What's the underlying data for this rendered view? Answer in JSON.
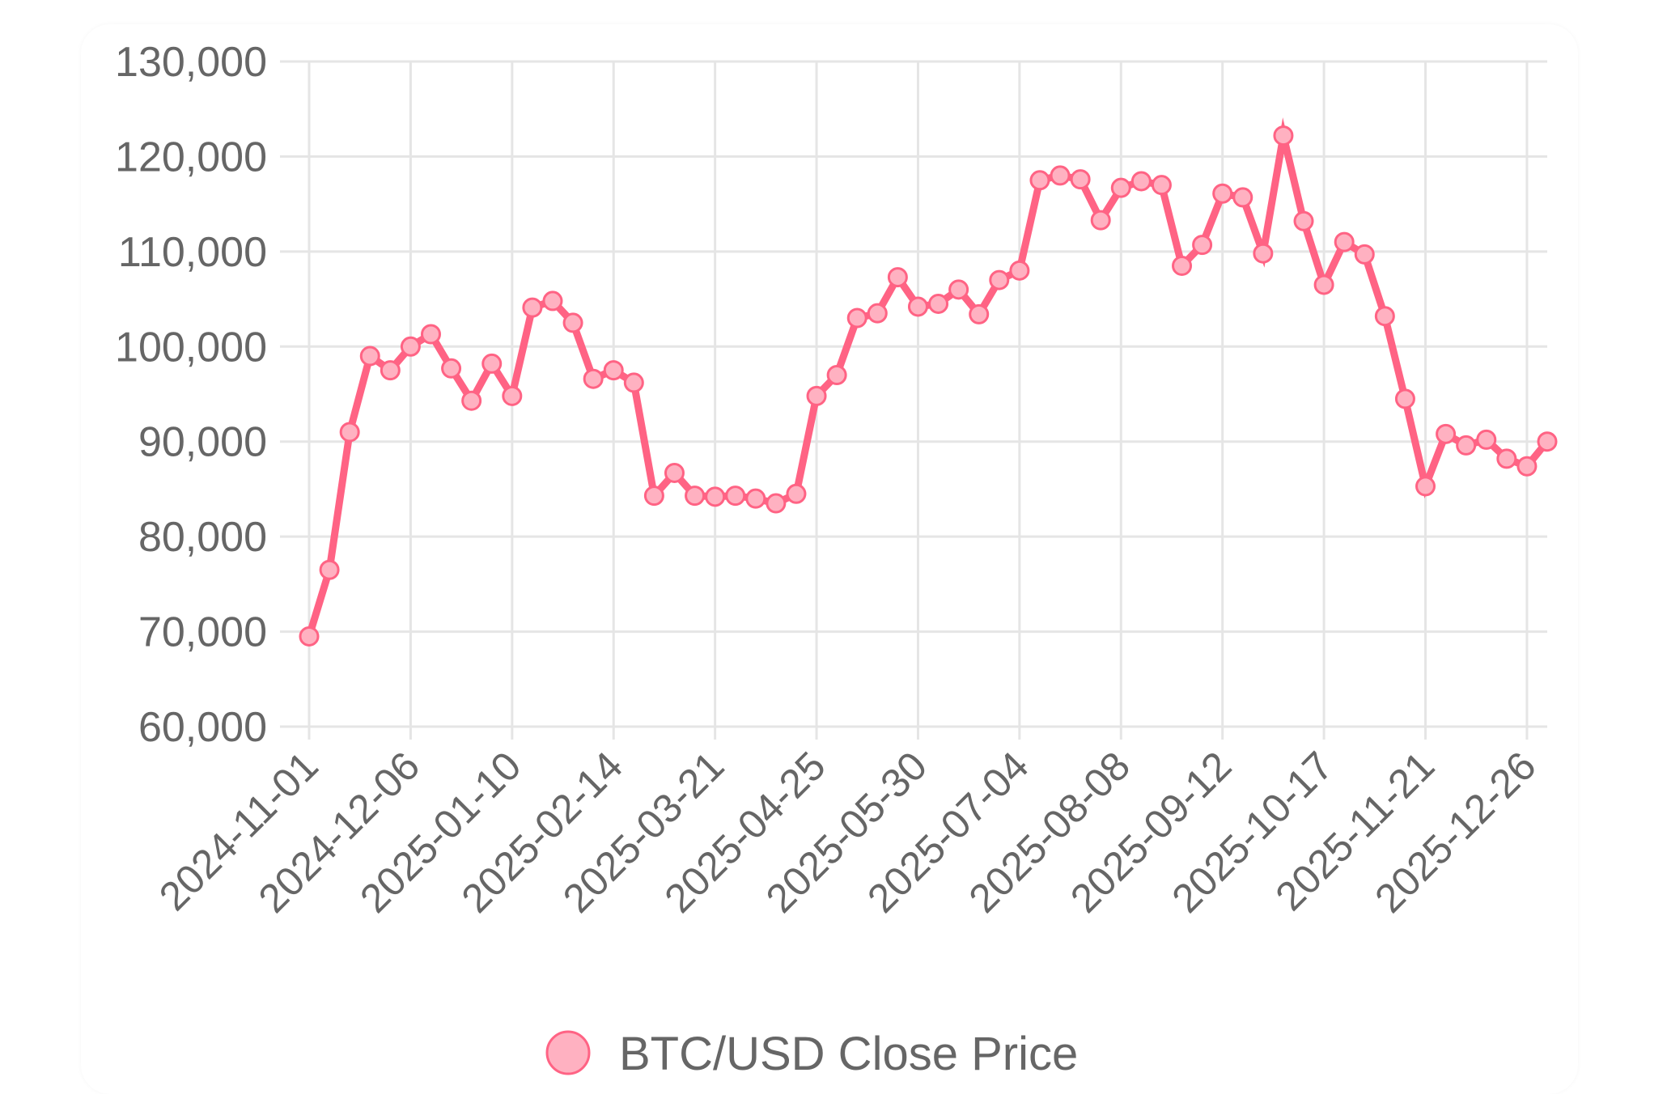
{
  "chart_data": {
    "type": "line",
    "x": [
      "2024-11-01",
      "2024-11-08",
      "2024-11-15",
      "2024-11-22",
      "2024-11-29",
      "2024-12-06",
      "2024-12-13",
      "2024-12-20",
      "2024-12-27",
      "2025-01-03",
      "2025-01-10",
      "2025-01-17",
      "2025-01-24",
      "2025-01-31",
      "2025-02-07",
      "2025-02-14",
      "2025-02-21",
      "2025-02-28",
      "2025-03-07",
      "2025-03-14",
      "2025-03-21",
      "2025-03-28",
      "2025-04-04",
      "2025-04-11",
      "2025-04-18",
      "2025-04-25",
      "2025-05-02",
      "2025-05-09",
      "2025-05-16",
      "2025-05-23",
      "2025-05-30",
      "2025-06-06",
      "2025-06-13",
      "2025-06-20",
      "2025-06-27",
      "2025-07-04",
      "2025-07-11",
      "2025-07-18",
      "2025-07-25",
      "2025-08-01",
      "2025-08-08",
      "2025-08-15",
      "2025-08-22",
      "2025-08-29",
      "2025-09-05",
      "2025-09-12",
      "2025-09-19",
      "2025-09-26",
      "2025-10-03",
      "2025-10-10",
      "2025-10-17",
      "2025-10-24",
      "2025-10-31",
      "2025-11-07",
      "2025-11-14",
      "2025-11-21",
      "2025-11-28",
      "2025-12-05",
      "2025-12-12",
      "2025-12-19",
      "2025-12-26",
      "2026-01-02"
    ],
    "series": [
      {
        "name": "BTC/USD Close Price",
        "values": [
          69500,
          76500,
          91000,
          99000,
          97500,
          100000,
          101300,
          97700,
          94300,
          98200,
          94800,
          104100,
          104800,
          102500,
          96600,
          97500,
          96200,
          84300,
          86700,
          84300,
          84200,
          84300,
          84000,
          83500,
          84500,
          94800,
          97000,
          103000,
          103500,
          107300,
          104200,
          104500,
          106000,
          103400,
          107000,
          108000,
          117500,
          118000,
          117600,
          113300,
          116700,
          117400,
          117000,
          108500,
          110700,
          116100,
          115700,
          109800,
          122200,
          113200,
          106500,
          111000,
          109700,
          103200,
          94500,
          85300,
          90800,
          89600,
          90200,
          88200,
          87400,
          90000
        ]
      }
    ],
    "x_tick_labels": [
      "2024-11-01",
      "2024-12-06",
      "2025-01-10",
      "2025-02-14",
      "2025-03-21",
      "2025-04-25",
      "2025-05-30",
      "2025-07-04",
      "2025-08-08",
      "2025-09-12",
      "2025-10-17",
      "2025-11-21",
      "2025-12-26"
    ],
    "y_tick_labels": [
      "130,000",
      "120,000",
      "110,000",
      "100,000",
      "90,000",
      "80,000",
      "70,000",
      "60,000"
    ],
    "ylim": [
      60000,
      130000
    ],
    "title": "",
    "xlabel": "",
    "ylabel": "",
    "grid": true,
    "legend_position": "bottom",
    "colors": {
      "line": "#ff6384",
      "point_fill": "#ffb1c1",
      "point_border": "#ff6384",
      "grid": "#e5e5e5",
      "text": "#666666"
    }
  }
}
